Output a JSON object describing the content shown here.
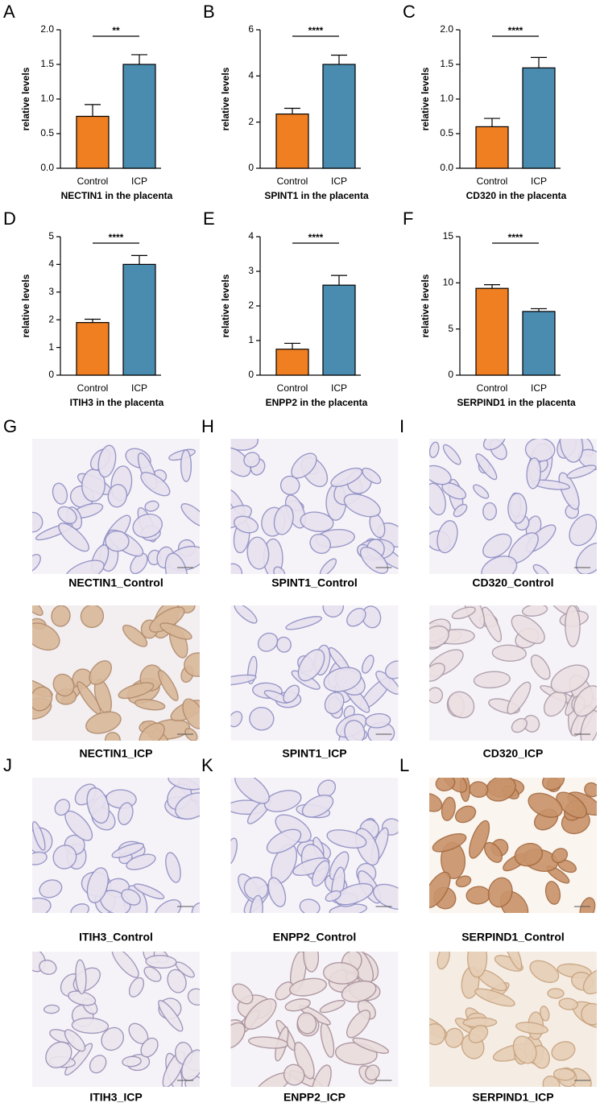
{
  "chart_data": [
    {
      "type": "bar",
      "panel": "A",
      "xlabel": "NECTIN1 in the placenta",
      "ylabel": "relative levels",
      "categories": [
        "Control",
        "ICP"
      ],
      "values": [
        0.75,
        1.5
      ],
      "errors": [
        0.17,
        0.14
      ],
      "colors": [
        "#f07f22",
        "#4a8bb0"
      ],
      "ylim": [
        0,
        2
      ],
      "yticks": [
        {
          "value": 0,
          "label": "0.0"
        },
        0.5,
        {
          "value": 1,
          "label": "1.0"
        },
        1.5,
        {
          "value": 2,
          "label": "2.0"
        }
      ],
      "annotation": "**"
    },
    {
      "type": "bar",
      "panel": "B",
      "xlabel": "SPINT1 in the placenta",
      "ylabel": "relative levels",
      "categories": [
        "Control",
        "ICP"
      ],
      "values": [
        2.35,
        4.5
      ],
      "errors": [
        0.25,
        0.4
      ],
      "colors": [
        "#f07f22",
        "#4a8bb0"
      ],
      "ylim": [
        0,
        6
      ],
      "yticks": [
        0,
        2,
        4,
        6
      ],
      "annotation": "****"
    },
    {
      "type": "bar",
      "panel": "C",
      "xlabel": "CD320 in the placenta",
      "ylabel": "relative levels",
      "categories": [
        "Control",
        "ICP"
      ],
      "values": [
        0.6,
        1.45
      ],
      "errors": [
        0.12,
        0.15
      ],
      "colors": [
        "#f07f22",
        "#4a8bb0"
      ],
      "ylim": [
        0,
        2
      ],
      "yticks": [
        {
          "value": 0,
          "label": "0.0"
        },
        0.5,
        {
          "value": 1,
          "label": "1.0"
        },
        1.5,
        {
          "value": 2,
          "label": "2.0"
        }
      ],
      "annotation": "****"
    },
    {
      "type": "bar",
      "panel": "D",
      "xlabel": "ITIH3 in the placenta",
      "ylabel": "relative levels",
      "categories": [
        "Control",
        "ICP"
      ],
      "values": [
        1.9,
        4.0
      ],
      "errors": [
        0.12,
        0.32
      ],
      "colors": [
        "#f07f22",
        "#4a8bb0"
      ],
      "ylim": [
        0,
        5
      ],
      "yticks": [
        0,
        1,
        2,
        3,
        4,
        5
      ],
      "annotation": "****"
    },
    {
      "type": "bar",
      "panel": "E",
      "xlabel": "ENPP2 in the placenta",
      "ylabel": "relative levels",
      "categories": [
        "Control",
        "ICP"
      ],
      "values": [
        0.75,
        2.6
      ],
      "errors": [
        0.17,
        0.28
      ],
      "colors": [
        "#f07f22",
        "#4a8bb0"
      ],
      "ylim": [
        0,
        4
      ],
      "yticks": [
        0,
        1,
        2,
        3,
        4
      ],
      "annotation": "****"
    },
    {
      "type": "bar",
      "panel": "F",
      "xlabel": "SERPIND1 in the placenta",
      "ylabel": "relative levels",
      "categories": [
        "Control",
        "ICP"
      ],
      "values": [
        9.4,
        6.9
      ],
      "errors": [
        0.4,
        0.3
      ],
      "colors": [
        "#f07f22",
        "#4a8bb0"
      ],
      "ylim": [
        0,
        15
      ],
      "yticks": [
        0,
        5,
        10,
        15
      ],
      "annotation": "****"
    }
  ],
  "images": {
    "panels": [
      {
        "label": "G",
        "captions": [
          "NECTIN1_Control",
          "NECTIN1_ICP"
        ]
      },
      {
        "label": "H",
        "captions": [
          "SPINT1_Control",
          "SPINT1_ICP"
        ]
      },
      {
        "label": "I",
        "captions": [
          "CD320_Control",
          "CD320_ICP"
        ]
      },
      {
        "label": "J",
        "captions": [
          "ITIH3_Control",
          "ITIH3_ICP"
        ]
      },
      {
        "label": "K",
        "captions": [
          "ENPP2_Control",
          "ENPP2_ICP"
        ]
      },
      {
        "label": "L",
        "captions": [
          "SERPIND1_Control",
          "SERPIND1_ICP"
        ]
      }
    ]
  }
}
